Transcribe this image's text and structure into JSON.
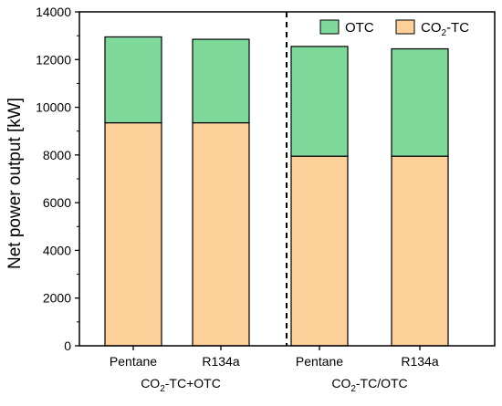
{
  "chart_data": {
    "type": "bar",
    "stacked": true,
    "categories": [
      "Pentane",
      "R134a",
      "Pentane",
      "R134a"
    ],
    "groups": [
      {
        "label_parts": [
          "CO",
          "2",
          "-TC+OTC"
        ]
      },
      {
        "label_parts": [
          "CO",
          "2",
          "-TC/OTC"
        ]
      }
    ],
    "group_of_category": [
      0,
      0,
      1,
      1
    ],
    "series": [
      {
        "name_parts": [
          "CO",
          "2",
          "-TC"
        ],
        "values": [
          9350,
          9350,
          7950,
          7950
        ],
        "color": "#fcd098"
      },
      {
        "name": "OTC",
        "values": [
          3600,
          3500,
          4600,
          4500
        ],
        "color": "#7fd99a"
      }
    ],
    "ylabel": "Net power output [kW]",
    "ylim": [
      0,
      14000
    ],
    "yticks": [
      0,
      2000,
      4000,
      6000,
      8000,
      10000,
      12000,
      14000
    ],
    "grid": false,
    "legend_position": "top-right",
    "group_separator": "dashed vertical line between groups"
  }
}
